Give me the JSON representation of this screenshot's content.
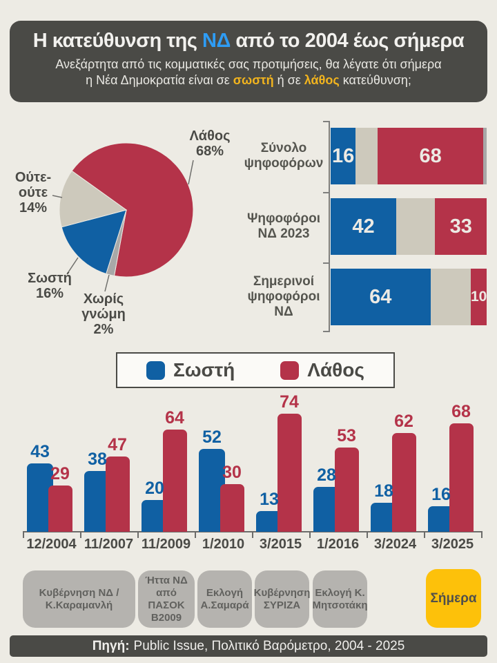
{
  "header": {
    "title_prefix": "Η κατεύθυνση της ",
    "title_highlight": "ΝΔ",
    "title_suffix": " από το 2004 έως σήμερα",
    "subtitle_line1": "Ανεξάρτητα από τις κομματικές σας προτιμήσεις, θα λέγατε ότι σήμερα",
    "subtitle_line2_prefix": "η Νέα Δημοκρατία είναι σε ",
    "subtitle_highlight1": "σωστή",
    "subtitle_line2_mid": " ή σε ",
    "subtitle_highlight2": "λάθος",
    "subtitle_line2_suffix": " κατεύθυνση;"
  },
  "colors": {
    "background": "#edebe4",
    "panel_dark": "#4a4a46",
    "blue": "#1060a3",
    "red": "#b43349",
    "beige": "#cdc9bc",
    "gray": "#a8a8a8",
    "amber": "#f2b41e",
    "today_yellow": "#fdc10a",
    "header_nd_blue": "#2e9cf4"
  },
  "chart_data": [
    {
      "type": "pie",
      "unit": "%",
      "start_angle_deg": 305.6,
      "slices": [
        {
          "key": "lathos",
          "label": "Λάθος",
          "value": 68,
          "color": "#b43349"
        },
        {
          "key": "xoris",
          "label": "Χωρίς γνώμη",
          "value": 2,
          "color": "#a8a8a8"
        },
        {
          "key": "sosti",
          "label": "Σωστή",
          "value": 16,
          "color": "#1060a3"
        },
        {
          "key": "oute",
          "label": "Ούτε-ούτε",
          "value": 14,
          "color": "#cdc9bc"
        }
      ]
    },
    {
      "type": "bar",
      "orientation": "horizontal",
      "stacked": true,
      "xlim": [
        0,
        100
      ],
      "categories": [
        "Σύνολο ψηφοφόρων",
        "Ψηφοφόροι ΝΔ 2023",
        "Σημερινοί ψηφοφόροι ΝΔ"
      ],
      "series": [
        {
          "key": "sosti",
          "name": "Σωστή",
          "color": "#1060a3",
          "show_label": true,
          "values": [
            16,
            42,
            64
          ]
        },
        {
          "key": "oute",
          "name": "Ούτε-ούτε",
          "color": "#cdc9bc",
          "show_label": false,
          "values": [
            14,
            25,
            26
          ]
        },
        {
          "key": "lathos",
          "name": "Λάθος",
          "color": "#b43349",
          "show_label": true,
          "values": [
            68,
            33,
            10
          ]
        },
        {
          "key": "xoris",
          "name": "Χωρίς γνώμη",
          "color": "#a8a8a8",
          "show_label": false,
          "values": [
            2,
            0,
            0
          ]
        }
      ]
    },
    {
      "type": "bar",
      "orientation": "vertical",
      "grouped": true,
      "ylim": [
        0,
        80
      ],
      "categories": [
        "12/2004",
        "11/2007",
        "11/2009",
        "1/2010",
        "3/2015",
        "1/2016",
        "3/2024",
        "3/2025"
      ],
      "series": [
        {
          "key": "sosti",
          "name": "Σωστή",
          "color": "#1060a3",
          "values": [
            43,
            38,
            20,
            52,
            13,
            28,
            18,
            16
          ]
        },
        {
          "key": "lathos",
          "name": "Λάθος",
          "color": "#b43349",
          "values": [
            29,
            47,
            64,
            30,
            74,
            53,
            62,
            68
          ]
        }
      ]
    }
  ],
  "legend": {
    "items": [
      {
        "label": "Σωστή",
        "color": "#1060a3"
      },
      {
        "label": "Λάθος",
        "color": "#b43349"
      }
    ]
  },
  "annotations": {
    "items": [
      {
        "label": "Κυβέρνηση ΝΔ / Κ.Καραμανλή"
      },
      {
        "label": "Ήττα ΝΔ από ΠΑΣΟΚ Β2009"
      },
      {
        "label": "Εκλογή Α.Σαμαρά"
      },
      {
        "label": "Κυβέρνηση ΣΥΡΙΖΑ"
      },
      {
        "label": "Εκλογή Κ. Μητσοτάκη"
      },
      {
        "label": "Σήμερα"
      }
    ]
  },
  "footer": {
    "label": "Πηγή:",
    "text": "Public Issue, Πολιτικό Βαρόμετρο, 2004 - 2025"
  }
}
